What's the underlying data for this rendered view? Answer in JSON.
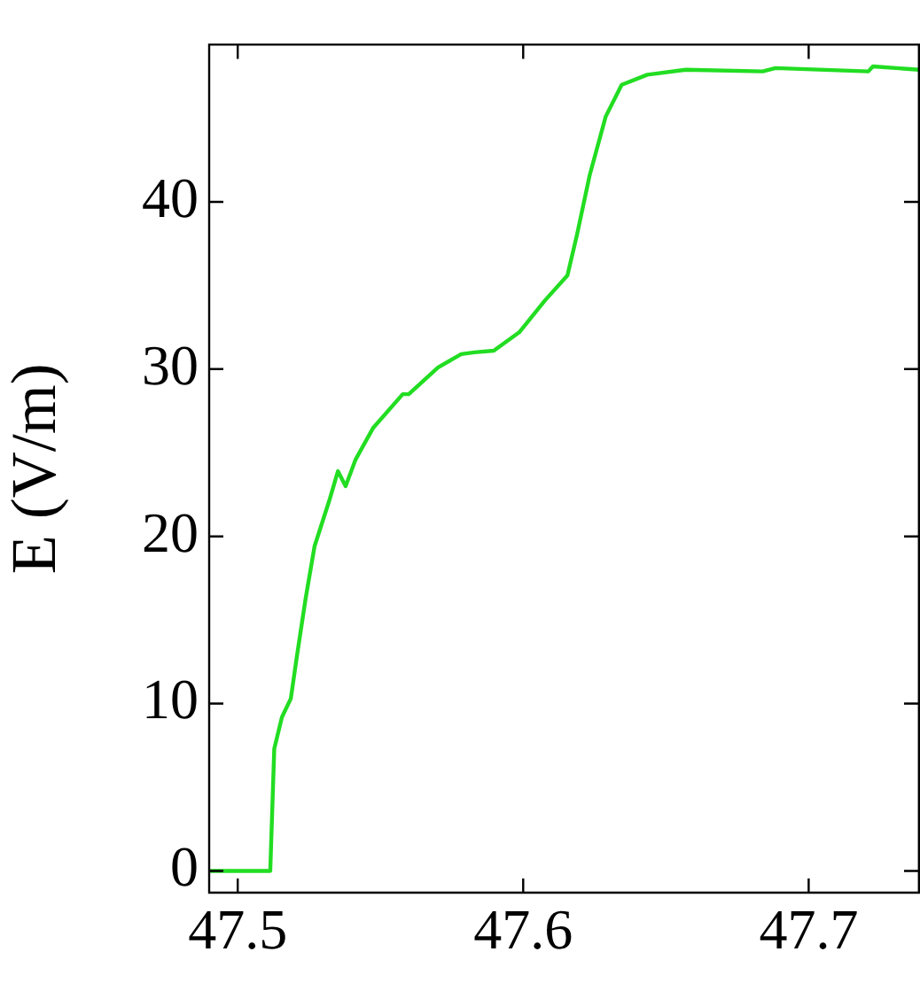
{
  "chart_data": {
    "type": "line",
    "ylabel": "E (V/m)",
    "x": [
      47.49,
      47.5114,
      47.5128,
      47.5155,
      47.5186,
      47.5207,
      47.5238,
      47.5269,
      47.532,
      47.5351,
      47.5378,
      47.5413,
      47.5475,
      47.5578,
      47.5599,
      47.5702,
      47.5783,
      47.5829,
      47.5897,
      47.5986,
      47.6076,
      47.6155,
      47.6188,
      47.6233,
      47.6289,
      47.6345,
      47.6435,
      47.657,
      47.6839,
      47.6884,
      47.7209,
      47.7225,
      47.7386
    ],
    "series": [
      {
        "color": "#22dd22",
        "values": [
          0,
          0,
          7.3,
          9.2,
          10.3,
          12.8,
          16.3,
          19.4,
          22.1,
          23.9,
          23.0,
          24.6,
          26.5,
          28.5,
          28.5,
          30.1,
          30.9,
          31.0,
          31.1,
          32.2,
          34.1,
          35.6,
          38.0,
          41.6,
          45.1,
          47.0,
          47.6,
          47.9,
          47.8,
          48.0,
          47.8,
          48.1,
          47.9
        ]
      }
    ],
    "xlim": [
      47.49,
      47.739
    ],
    "ylim": [
      -1.3,
      49.4
    ],
    "xticks": [
      47.5,
      47.6,
      47.7
    ],
    "yticks": [
      0,
      10,
      20,
      30,
      40
    ],
    "grid": false,
    "legend": false,
    "marker": "none",
    "line_style": "solid"
  }
}
